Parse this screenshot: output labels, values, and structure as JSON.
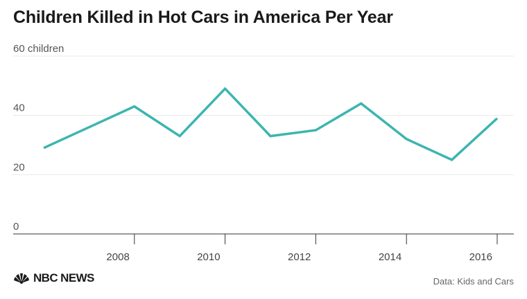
{
  "title": "Children Killed in Hot Cars in America Per Year",
  "source": "Data: Kids and Cars",
  "logo": {
    "text": "NBC NEWS",
    "icon": "peacock-icon"
  },
  "colors": {
    "line": "#3cb5b0",
    "grid": "#e8e8e8",
    "axis": "#333333",
    "text": "#1a1a1a"
  },
  "chart_data": {
    "type": "line",
    "title": "Children Killed in Hot Cars in America Per Year",
    "xlabel": "",
    "ylabel": "",
    "x": [
      2006,
      2007,
      2008,
      2009,
      2010,
      2011,
      2012,
      2013,
      2014,
      2015,
      2016
    ],
    "series": [
      {
        "values": [
          29,
          36,
          43,
          33,
          49,
          33,
          35,
          44,
          32,
          25,
          39
        ]
      }
    ],
    "y_ticks": [
      0,
      20,
      40,
      60
    ],
    "y_tick_labels": [
      "0",
      "20",
      "40",
      "60 children"
    ],
    "x_ticks": [
      2008,
      2010,
      2012,
      2014,
      2016
    ],
    "x_tick_labels": [
      "2008",
      "2010",
      "2012",
      "2014",
      "2016"
    ],
    "ylim": [
      0,
      60
    ],
    "grid": true,
    "legend": "none"
  }
}
